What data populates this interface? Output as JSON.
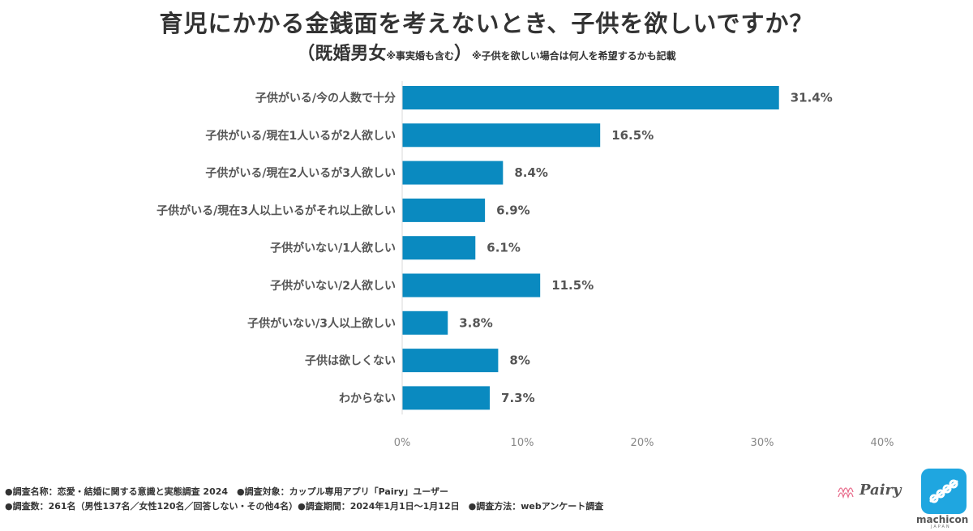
{
  "title": "育児にかかる金銭面を考えないとき、子供を欲しいですか？",
  "subtitle": "（既婚男女",
  "subtitle_note": "※事実婚も含む",
  "subtitle_close": "）",
  "subtitle_note2": "※子供を欲しい場合は何人を希望するかも記載",
  "colors": {
    "bar": "#0a8ac0",
    "text": "#555555"
  },
  "chart_data": {
    "type": "bar",
    "orientation": "horizontal",
    "categories": [
      "子供がいる/今の人数で十分",
      "子供がいる/現在1人いるが2人欲しい",
      "子供がいる/現在2人いるが3人欲しい",
      "子供がいる/現在3人以上いるがそれ以上欲しい",
      "子供がいない/1人欲しい",
      "子供がいない/2人欲しい",
      "子供がいない/3人以上欲しい",
      "子供は欲しくない",
      "わからない"
    ],
    "values": [
      31.4,
      16.5,
      8.4,
      6.9,
      6.1,
      11.5,
      3.8,
      8,
      7.3
    ],
    "value_labels": [
      "31.4%",
      "16.5%",
      "8.4%",
      "6.9%",
      "6.1%",
      "11.5%",
      "3.8%",
      "8%",
      "7.3%"
    ],
    "xlim": [
      0,
      40
    ],
    "xticks": [
      "0%",
      "10%",
      "20%",
      "30%",
      "40%"
    ],
    "grid": false
  },
  "footer": {
    "line1": "●調査名称：恋愛・結婚に関する意識と実態調査 2024　●調査対象：カップル専用アプリ「Pairy」ユーザー",
    "line2": "●調査数：261名（男性137名／女性120名／回答しない・その他4名）●調査期間：2024年1月1日～1月12日　●調査方法：webアンケート調査"
  },
  "logos": {
    "pairy": "Pairy",
    "machicon": "machicon",
    "machicon_sub": "JAPAN"
  }
}
